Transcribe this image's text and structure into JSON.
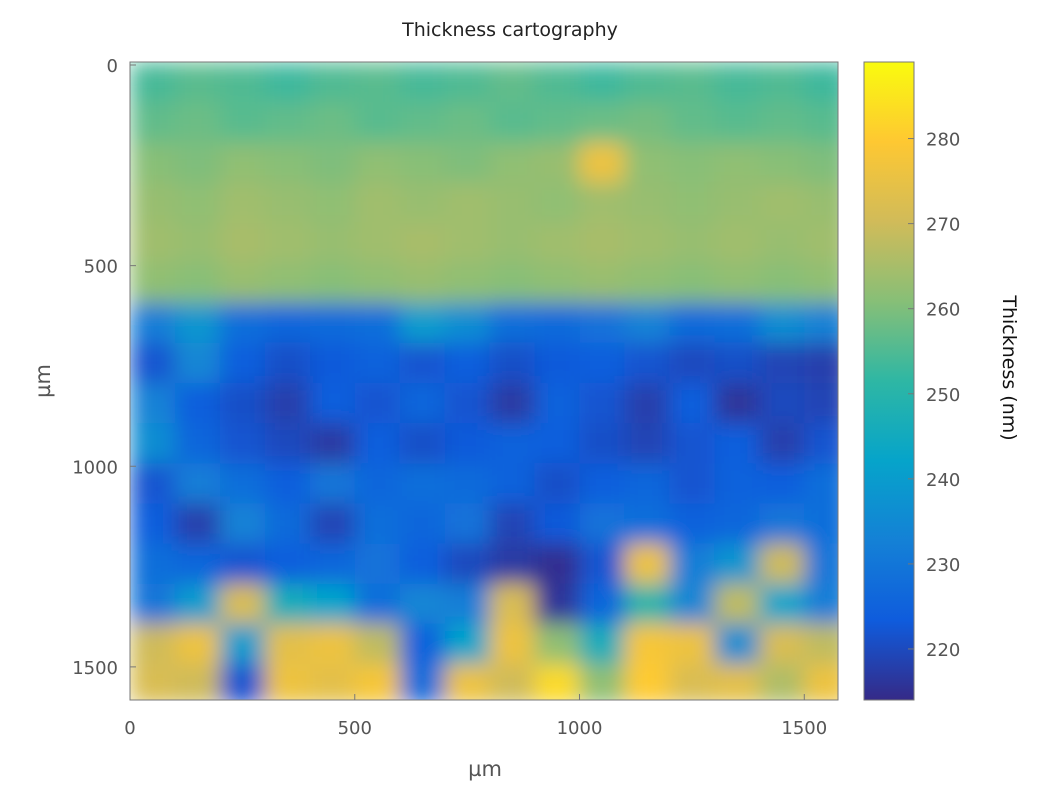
{
  "chart_data": {
    "type": "heatmap",
    "title": "Thickness cartography",
    "xlabel": "µm",
    "ylabel": "µm",
    "colorbar_label": "Thickness (nm)",
    "xlim": [
      0,
      1575
    ],
    "ylim": [
      0,
      1590
    ],
    "y_reversed": true,
    "xticks": [
      0,
      500,
      1000,
      1500
    ],
    "yticks": [
      0,
      500,
      1000,
      1500
    ],
    "colorbar_range": [
      214,
      289
    ],
    "colorbar_ticks": [
      220,
      230,
      240,
      250,
      260,
      270,
      280
    ],
    "colormap": [
      "#352a87",
      "#0f5cdd",
      "#1481d6",
      "#06a4ca",
      "#2eb7a4",
      "#87bf77",
      "#d1bb59",
      "#fec832",
      "#f9fb0e"
    ],
    "cell_size_um": 100,
    "grid": [
      [
        254,
        256,
        255,
        253,
        255,
        256,
        254,
        255,
        257,
        255,
        253,
        255,
        256,
        254,
        255,
        253
      ],
      [
        257,
        258,
        256,
        257,
        258,
        256,
        257,
        258,
        256,
        257,
        258,
        259,
        257,
        256,
        257,
        256
      ],
      [
        261,
        260,
        262,
        261,
        260,
        262,
        261,
        260,
        262,
        263,
        276,
        262,
        261,
        262,
        261,
        260
      ],
      [
        263,
        262,
        264,
        263,
        262,
        264,
        263,
        264,
        263,
        262,
        264,
        263,
        262,
        263,
        264,
        263
      ],
      [
        264,
        263,
        265,
        264,
        263,
        264,
        265,
        264,
        263,
        264,
        265,
        264,
        263,
        264,
        263,
        264
      ],
      [
        262,
        261,
        263,
        262,
        261,
        262,
        263,
        262,
        261,
        262,
        263,
        262,
        261,
        262,
        261,
        262
      ],
      [
        232,
        238,
        228,
        226,
        227,
        228,
        240,
        236,
        228,
        227,
        229,
        233,
        227,
        228,
        236,
        233
      ],
      [
        222,
        234,
        224,
        221,
        223,
        225,
        222,
        224,
        221,
        223,
        224,
        222,
        220,
        221,
        219,
        218
      ],
      [
        233,
        224,
        221,
        218,
        224,
        222,
        226,
        222,
        217,
        225,
        222,
        218,
        224,
        216,
        220,
        219
      ],
      [
        236,
        226,
        222,
        220,
        217,
        224,
        221,
        223,
        225,
        224,
        221,
        219,
        222,
        224,
        218,
        222
      ],
      [
        222,
        232,
        228,
        224,
        230,
        226,
        228,
        227,
        225,
        221,
        224,
        226,
        222,
        225,
        224,
        228
      ],
      [
        224,
        218,
        233,
        227,
        219,
        228,
        226,
        229,
        219,
        223,
        229,
        228,
        225,
        226,
        230,
        228
      ],
      [
        228,
        226,
        222,
        224,
        226,
        229,
        224,
        220,
        217,
        215,
        222,
        276,
        232,
        238,
        270,
        230
      ],
      [
        230,
        240,
        272,
        246,
        242,
        228,
        234,
        232,
        272,
        216,
        226,
        250,
        234,
        268,
        242,
        232
      ],
      [
        270,
        276,
        240,
        274,
        276,
        268,
        225,
        242,
        276,
        262,
        246,
        278,
        276,
        236,
        272,
        268
      ],
      [
        272,
        270,
        222,
        276,
        274,
        278,
        228,
        276,
        270,
        283,
        262,
        280,
        272,
        274,
        266,
        276
      ]
    ]
  }
}
